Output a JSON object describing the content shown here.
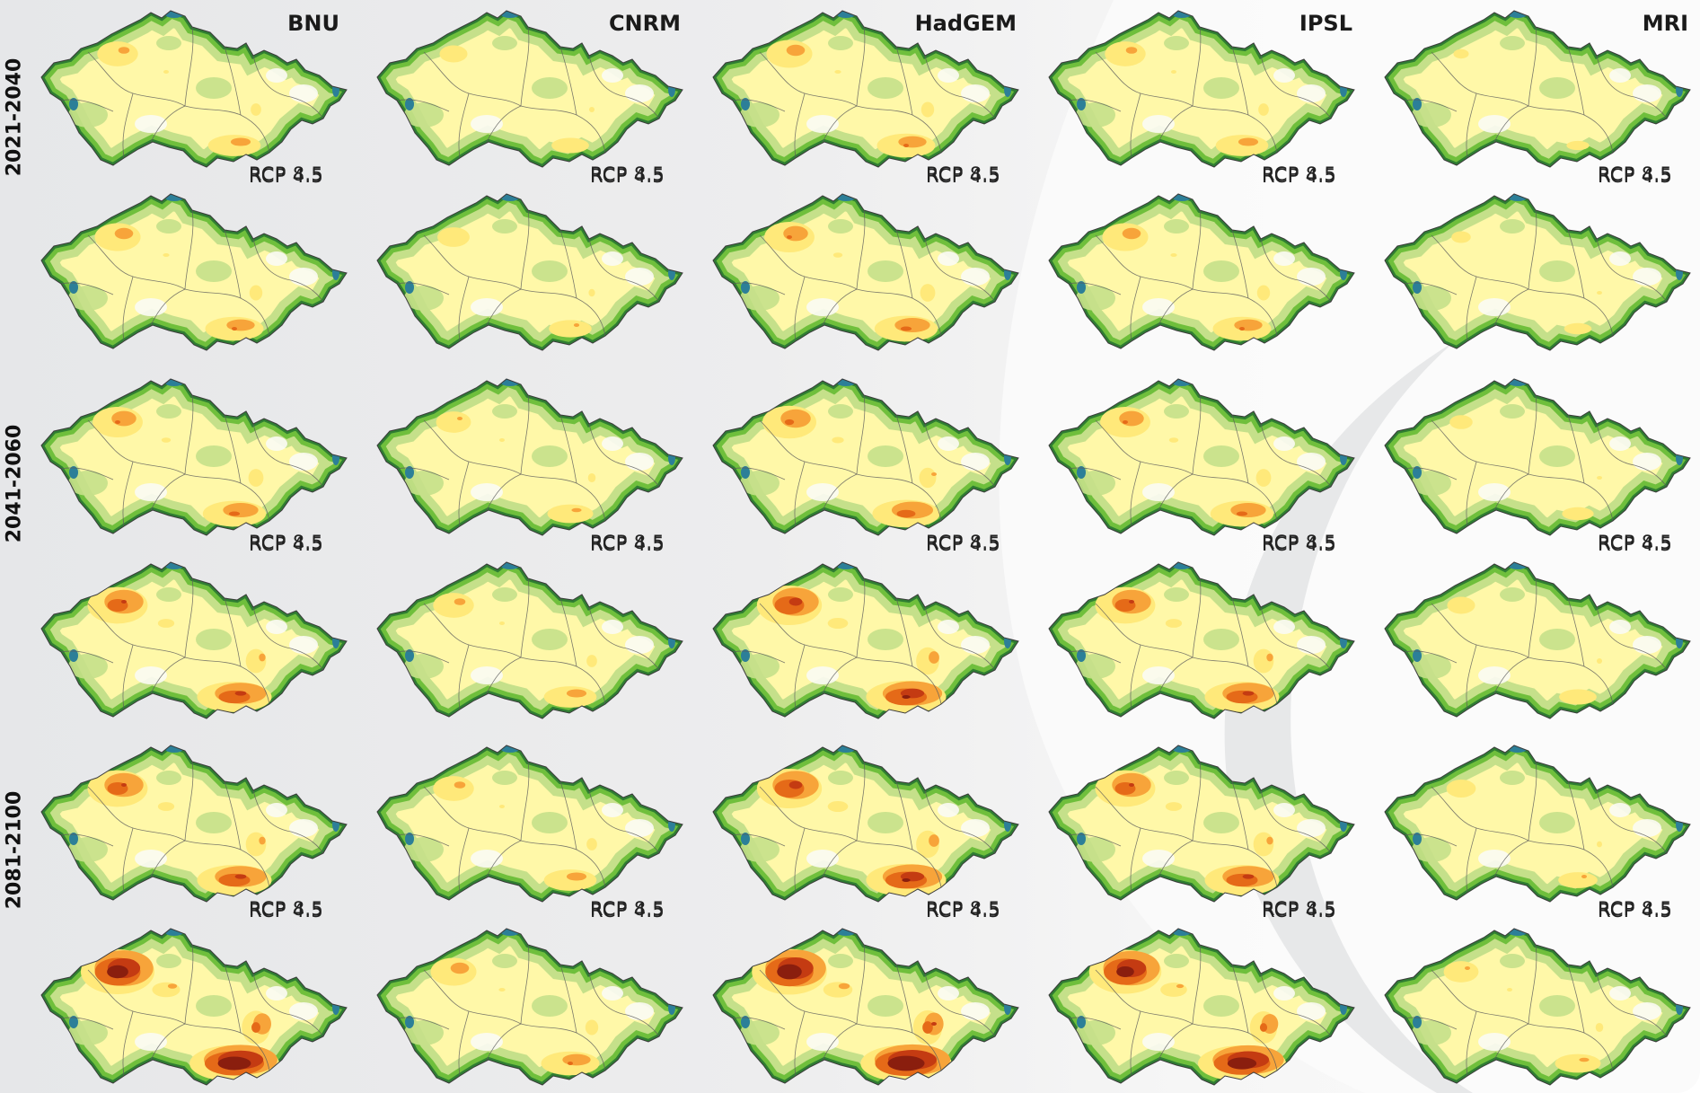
{
  "models": [
    "BNU",
    "CNRM",
    "HadGEM",
    "IPSL",
    "MRI"
  ],
  "periods": [
    "2021-2040",
    "2041-2060",
    "2081-2100"
  ],
  "scenarios": [
    "RCP 4.5",
    "RCP 8.5"
  ],
  "palette": {
    "darkgreen": "#2f7d32",
    "green": "#6fbf3c",
    "lightgreen": "#c5e08a",
    "white": "#fbfbf4",
    "paleyellow": "#fff8a8",
    "yellow": "#ffe97a",
    "orange": "#f7a43a",
    "darkorange": "#e56a18",
    "red": "#c43b12",
    "darkred": "#8a1e0e",
    "lake": "#2c7f98",
    "border": "#5a5a5a"
  },
  "intensity": {
    "BNU": [
      [
        0.35,
        0.4
      ],
      [
        0.45,
        0.6
      ],
      [
        0.6,
        0.95
      ]
    ],
    "CNRM": [
      [
        0.25,
        0.28
      ],
      [
        0.3,
        0.35
      ],
      [
        0.35,
        0.4
      ]
    ],
    "HadGEM": [
      [
        0.4,
        0.45
      ],
      [
        0.5,
        0.7
      ],
      [
        0.7,
        1.0
      ]
    ],
    "IPSL": [
      [
        0.35,
        0.4
      ],
      [
        0.45,
        0.6
      ],
      [
        0.6,
        0.9
      ]
    ],
    "MRI": [
      [
        0.18,
        0.2
      ],
      [
        0.22,
        0.25
      ],
      [
        0.26,
        0.3
      ]
    ]
  }
}
